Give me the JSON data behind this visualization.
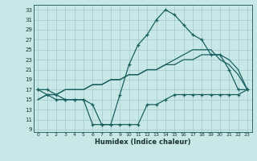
{
  "xlabel": "Humidex (Indice chaleur)",
  "bg_color": "#c8e8e8",
  "grid_color": "#a8cccc",
  "line_color": "#1a6060",
  "xlim": [
    -0.5,
    23.5
  ],
  "ylim": [
    8.5,
    34.0
  ],
  "yticks": [
    9,
    11,
    13,
    15,
    17,
    19,
    21,
    23,
    25,
    27,
    29,
    31,
    33
  ],
  "xticks": [
    0,
    1,
    2,
    3,
    4,
    5,
    6,
    7,
    8,
    9,
    10,
    11,
    12,
    13,
    14,
    15,
    16,
    17,
    18,
    19,
    20,
    21,
    22,
    23
  ],
  "line_max": [
    17,
    17,
    16,
    15,
    15,
    15,
    10,
    10,
    10,
    16,
    22,
    26,
    28,
    31,
    33,
    32,
    30,
    28,
    27,
    24,
    24,
    21,
    17,
    17
  ],
  "line_min": [
    17,
    16,
    15,
    15,
    15,
    15,
    14,
    10,
    10,
    10,
    10,
    10,
    14,
    14,
    15,
    16,
    16,
    16,
    16,
    16,
    16,
    16,
    16,
    17
  ],
  "line_avg1": [
    15,
    16,
    16,
    17,
    17,
    17,
    18,
    18,
    19,
    19,
    20,
    20,
    21,
    21,
    22,
    22,
    23,
    23,
    24,
    24,
    24,
    23,
    21,
    17
  ],
  "line_avg2": [
    15,
    16,
    16,
    17,
    17,
    17,
    18,
    18,
    19,
    19,
    20,
    20,
    21,
    21,
    22,
    23,
    24,
    25,
    25,
    25,
    23,
    22,
    20,
    17
  ]
}
